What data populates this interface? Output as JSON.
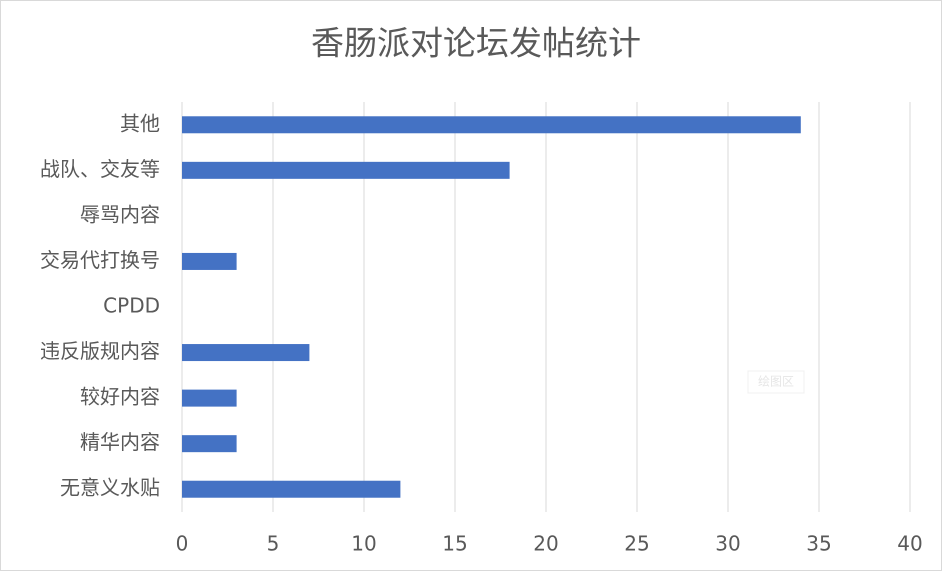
{
  "chart_data": {
    "type": "hbar",
    "title": "香肠派对论坛发帖统计",
    "categories": [
      "其他",
      "战队、交友等",
      "辱骂内容",
      "交易代打换号",
      "CPDD",
      "违反版规内容",
      "较好内容",
      "精华内容",
      "无意义水贴"
    ],
    "values": [
      34,
      18,
      0,
      3,
      0,
      7,
      3,
      3,
      12
    ],
    "color": "#4472c4",
    "xlim": [
      0,
      40
    ],
    "xticks": [
      0,
      5,
      10,
      15,
      20,
      25,
      30,
      35,
      40
    ],
    "grid": true,
    "tooltip": "绘图区"
  }
}
